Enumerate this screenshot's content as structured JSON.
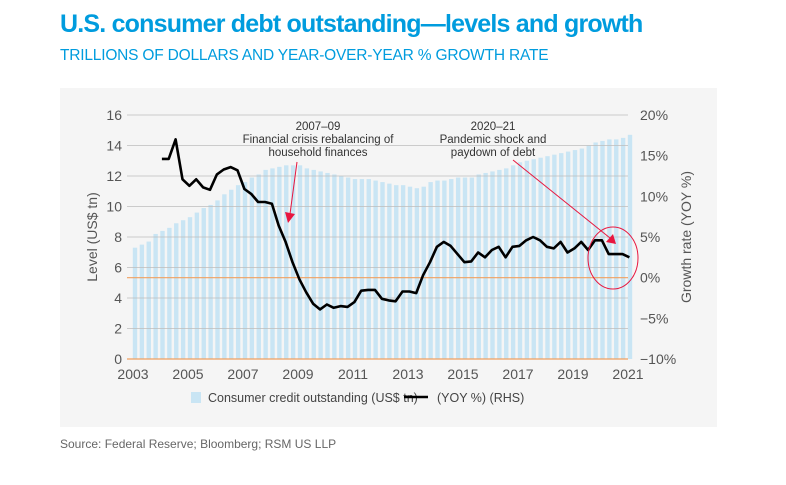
{
  "title": "U.S. consumer debt outstanding—levels and growth",
  "subtitle": "TRILLIONS OF DOLLARS AND YEAR-OVER-YEAR % GROWTH RATE",
  "source": "Source: Federal Reserve; Bloomberg; RSM US LLP",
  "chart_data": {
    "type": "bar+line",
    "xlabel": "",
    "ylabel": "Level (US$ tn)",
    "y2label": "Growth rate (YOY %)",
    "ylim": [
      0,
      16
    ],
    "y2lim": [
      -10,
      20
    ],
    "yticks": [
      "0",
      "2",
      "4",
      "6",
      "8",
      "10",
      "12",
      "14",
      "16"
    ],
    "y2ticks": [
      "−10%",
      "−5%",
      "0%",
      "5%",
      "10%",
      "15%",
      "20%"
    ],
    "xticks": [
      "2003",
      "2005",
      "2007",
      "2009",
      "2011",
      "2013",
      "2015",
      "2017",
      "2019",
      "2021"
    ],
    "grid": true,
    "legend_position": "bottom",
    "colors": {
      "bars": "#c9e5f4",
      "line": "#000000",
      "zero_line": "#f0a060",
      "annotation": "#e8173f",
      "grid": "#bdbdbd"
    },
    "series": [
      {
        "name": "Consumer credit outstanding (US$ tn)",
        "type": "bar",
        "axis": "left",
        "start": "2003Q1",
        "frequency": "quarterly",
        "values": [
          7.3,
          7.5,
          7.7,
          8.2,
          8.4,
          8.6,
          8.9,
          9.1,
          9.3,
          9.6,
          9.9,
          10.1,
          10.4,
          10.8,
          11.1,
          11.4,
          11.6,
          11.9,
          12.1,
          12.4,
          12.5,
          12.6,
          12.7,
          12.7,
          12.7,
          12.5,
          12.4,
          12.3,
          12.2,
          12.1,
          12.0,
          11.9,
          11.8,
          11.8,
          11.8,
          11.7,
          11.6,
          11.5,
          11.4,
          11.4,
          11.3,
          11.2,
          11.3,
          11.6,
          11.7,
          11.7,
          11.8,
          11.9,
          11.9,
          11.9,
          12.1,
          12.2,
          12.3,
          12.4,
          12.5,
          12.7,
          12.9,
          13.0,
          13.1,
          13.2,
          13.3,
          13.4,
          13.5,
          13.6,
          13.7,
          13.8,
          14.0,
          14.2,
          14.3,
          14.4,
          14.4,
          14.5,
          14.7
        ]
      },
      {
        "name": "(YOY %) (RHS)",
        "type": "line",
        "axis": "right",
        "start": "2004Q1",
        "frequency": "quarterly",
        "values": [
          14.6,
          14.6,
          17.0,
          12.1,
          11.3,
          12.1,
          11.1,
          10.8,
          12.7,
          13.3,
          13.6,
          13.2,
          10.9,
          10.3,
          9.3,
          9.3,
          9.1,
          6.4,
          4.4,
          1.9,
          -0.2,
          -1.8,
          -3.2,
          -3.9,
          -3.3,
          -3.7,
          -3.5,
          -3.6,
          -3.0,
          -1.6,
          -1.5,
          -1.5,
          -2.6,
          -2.8,
          -2.9,
          -1.7,
          -1.7,
          -1.9,
          0.3,
          1.9,
          3.8,
          4.4,
          3.9,
          2.9,
          1.9,
          2.0,
          3.1,
          2.5,
          3.4,
          3.8,
          2.5,
          3.8,
          3.9,
          4.6,
          5.0,
          4.6,
          3.8,
          3.6,
          4.4,
          3.1,
          3.6,
          4.4,
          3.4,
          4.6,
          4.6,
          2.9,
          2.9,
          2.9,
          2.5
        ]
      }
    ],
    "annotations": [
      {
        "heading": "2007–09",
        "lines": [
          "Financial crisis rebalancing of",
          "household finances"
        ]
      },
      {
        "heading": "2020–21",
        "lines": [
          "Pandemic shock and",
          "paydown of debt"
        ]
      }
    ]
  }
}
